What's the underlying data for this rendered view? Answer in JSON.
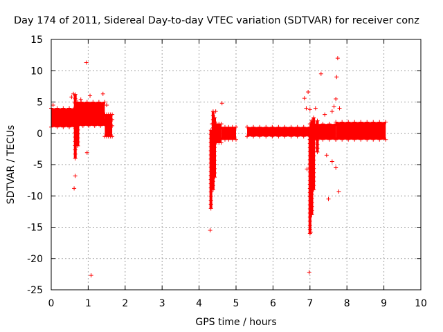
{
  "chart_data": {
    "type": "scatter",
    "title": "Day 174 of 2011, Sidereal Day-to-day VTEC variation (SDTVAR) for receiver conz",
    "xlabel": "GPS time / hours",
    "ylabel": "SDTVAR / TECUs",
    "xlim": [
      0,
      10
    ],
    "ylim": [
      -25,
      15
    ],
    "xticks": [
      0,
      1,
      2,
      3,
      4,
      5,
      6,
      7,
      8,
      9,
      10
    ],
    "yticks": [
      15,
      10,
      5,
      0,
      -5,
      -10,
      -15,
      -20,
      -25
    ],
    "grid": true,
    "marker": "+",
    "color": "#ff0000",
    "dense_bands": [
      {
        "x0": 0.0,
        "x1": 0.65,
        "y_low": 1.0,
        "y_high": 4.0
      },
      {
        "x0": 0.65,
        "x1": 1.45,
        "y_low": 2.0,
        "y_high": 5.0
      },
      {
        "x0": 0.7,
        "x1": 1.65,
        "y_low": 1.2,
        "y_high": 2.2
      },
      {
        "x0": 1.45,
        "x1": 1.65,
        "y_low": -0.5,
        "y_high": 3.0
      },
      {
        "x0": 4.35,
        "x1": 4.6,
        "y_low": -1.5,
        "y_high": 1.5
      },
      {
        "x0": 4.6,
        "x1": 5.0,
        "y_low": -1.0,
        "y_high": 1.0
      },
      {
        "x0": 5.3,
        "x1": 7.0,
        "y_low": -0.5,
        "y_high": 1.0
      },
      {
        "x0": 7.0,
        "x1": 7.7,
        "y_low": -1.0,
        "y_high": 1.5
      },
      {
        "x0": 7.7,
        "x1": 9.05,
        "y_low": -1.0,
        "y_high": 1.8
      }
    ],
    "vertical_traces": [
      {
        "x": 0.65,
        "y_top": 6.2,
        "y_bottom": -4.0
      },
      {
        "x": 0.72,
        "y_top": 5.0,
        "y_bottom": -2.0
      },
      {
        "x": 4.32,
        "y_top": 0.5,
        "y_bottom": -12.0
      },
      {
        "x": 4.38,
        "y_top": 3.5,
        "y_bottom": -9.0
      },
      {
        "x": 4.42,
        "y_top": 2.5,
        "y_bottom": -7.0
      },
      {
        "x": 7.0,
        "y_top": 1.0,
        "y_bottom": -16.0
      },
      {
        "x": 7.05,
        "y_top": 2.0,
        "y_bottom": -13.0
      },
      {
        "x": 7.1,
        "y_top": 2.5,
        "y_bottom": -9.0
      },
      {
        "x": 7.2,
        "y_top": 2.0,
        "y_bottom": -3.0
      }
    ],
    "outliers": [
      [
        0.55,
        5.8
      ],
      [
        0.6,
        6.3
      ],
      [
        0.62,
        -8.8
      ],
      [
        0.65,
        -6.8
      ],
      [
        0.8,
        5.4
      ],
      [
        0.95,
        11.3
      ],
      [
        0.97,
        -3.1
      ],
      [
        1.05,
        6.0
      ],
      [
        1.08,
        -22.7
      ],
      [
        1.4,
        6.3
      ],
      [
        1.3,
        2.8
      ],
      [
        1.5,
        4.5
      ],
      [
        0.05,
        4.5
      ],
      [
        4.3,
        -15.5
      ],
      [
        4.62,
        4.8
      ],
      [
        4.45,
        3.5
      ],
      [
        6.85,
        5.6
      ],
      [
        6.95,
        6.6
      ],
      [
        6.92,
        -5.7
      ],
      [
        6.98,
        -22.2
      ],
      [
        7.02,
        -15.8
      ],
      [
        7.15,
        4.0
      ],
      [
        7.3,
        9.5
      ],
      [
        7.4,
        3.0
      ],
      [
        7.45,
        -3.5
      ],
      [
        7.5,
        -10.5
      ],
      [
        7.6,
        3.5
      ],
      [
        7.65,
        4.3
      ],
      [
        7.7,
        5.5
      ],
      [
        7.72,
        9.0
      ],
      [
        7.75,
        12.0
      ],
      [
        7.78,
        -9.3
      ],
      [
        7.6,
        -4.5
      ],
      [
        7.7,
        -5.5
      ],
      [
        7.8,
        4.0
      ],
      [
        6.9,
        4.0
      ],
      [
        7.0,
        3.8
      ]
    ]
  }
}
